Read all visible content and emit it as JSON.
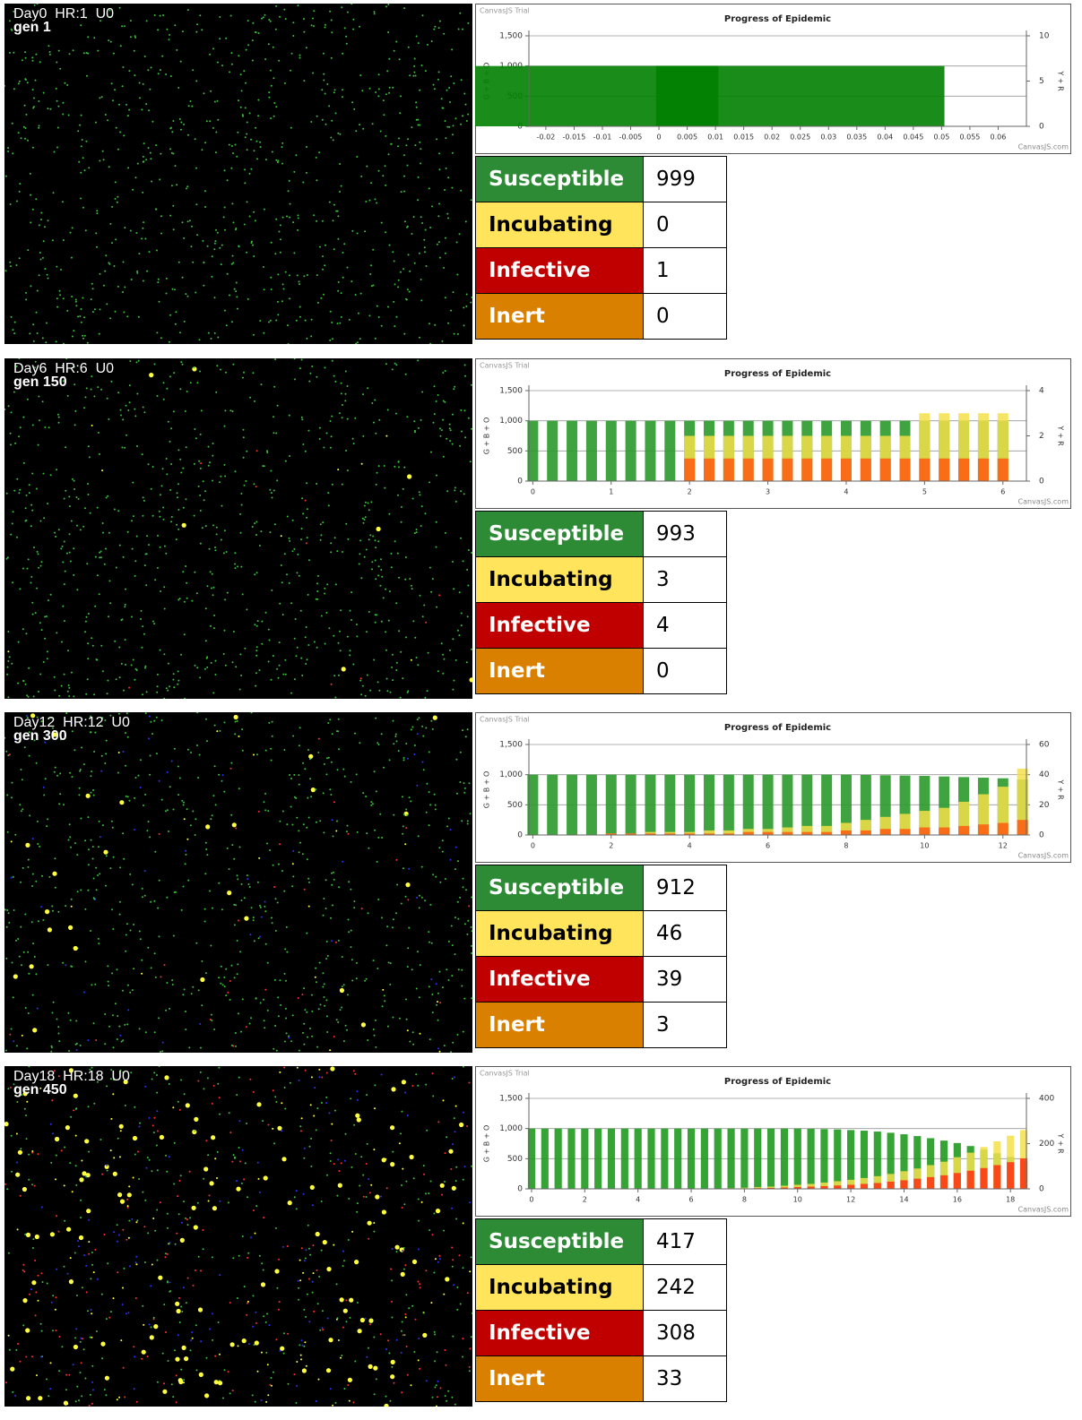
{
  "panels": [
    {
      "status": "Day0  HR:1  U0",
      "gen": "gen 1",
      "table": {
        "rows": [
          [
            "Susceptible",
            999
          ],
          [
            "Incubating",
            0
          ],
          [
            "Infective",
            1
          ],
          [
            "Inert",
            0
          ]
        ]
      }
    },
    {
      "status": "Day6  HR:6  U0",
      "gen": "gen 150",
      "table": {
        "rows": [
          [
            "Susceptible",
            993
          ],
          [
            "Incubating",
            3
          ],
          [
            "Infective",
            4
          ],
          [
            "Inert",
            0
          ]
        ]
      }
    },
    {
      "status": "Day12  HR:12  U0",
      "gen": "gen 300",
      "table": {
        "rows": [
          [
            "Susceptible",
            912
          ],
          [
            "Incubating",
            46
          ],
          [
            "Infective",
            39
          ],
          [
            "Inert",
            3
          ]
        ]
      }
    },
    {
      "status": "Day18  HR:18  U0",
      "gen": "gen 450",
      "table": {
        "rows": [
          [
            "Susceptible",
            417
          ],
          [
            "Incubating",
            242
          ],
          [
            "Infective",
            308
          ],
          [
            "Inert",
            33
          ]
        ]
      }
    }
  ],
  "chart_data": [
    {
      "type": "bar",
      "title": "Progress of Epidemic",
      "watermark": "CanvasJS Trial",
      "credit": "CanvasJS.com",
      "ylabel": "G + B + O",
      "y2label": "Y + R",
      "x": [
        -0.015,
        0.025
      ],
      "xlim": [
        -0.023,
        0.065
      ],
      "xticks": [
        -0.02,
        -0.015,
        -0.01,
        -0.005,
        0,
        0.005,
        0.01,
        0.015,
        0.02,
        0.025,
        0.03,
        0.035,
        0.04,
        0.045,
        0.05,
        0.055,
        0.06
      ],
      "bar_width": 0.006,
      "ylim": [
        0,
        1500
      ],
      "yticks": [
        0,
        500,
        {
          "value": 1000,
          "label": "1,000"
        },
        {
          "value": 1500,
          "label": "1,500"
        }
      ],
      "y2lim": [
        0,
        10
      ],
      "y2ticks": [
        0,
        5,
        10
      ],
      "grid": true,
      "series": [
        {
          "color": "#008000",
          "values": [
            1000,
            1000
          ]
        }
      ]
    },
    {
      "type": "bar",
      "title": "Progress of Epidemic",
      "watermark": "CanvasJS Trial",
      "credit": "CanvasJS.com",
      "ylabel": "G + B + O",
      "y2label": "Y + R",
      "x": [
        0,
        0.25,
        0.5,
        0.75,
        1,
        1.25,
        1.5,
        1.75,
        2,
        2.25,
        2.5,
        2.75,
        3,
        3.25,
        3.5,
        3.75,
        4,
        4.25,
        4.5,
        4.75,
        5,
        5.25,
        5.5,
        5.75,
        6
      ],
      "xlim": [
        -0.05,
        6.3
      ],
      "xticks": [
        0,
        1,
        2,
        3,
        4,
        5,
        6
      ],
      "ylim": [
        0,
        1500
      ],
      "yticks": [
        0,
        500,
        {
          "value": 1000,
          "label": "1,000"
        },
        {
          "value": 1500,
          "label": "1,500"
        }
      ],
      "y2lim": [
        0,
        4
      ],
      "y2ticks": [
        0,
        2,
        4
      ],
      "grid": true,
      "series": [
        {
          "color": "#2a9a2a",
          "values": [
            1000,
            1000,
            1000,
            1000,
            1000,
            1000,
            1000,
            1000,
            1000,
            1000,
            1000,
            1000,
            1000,
            1000,
            1000,
            1000,
            1000,
            1000,
            1000,
            1000,
            1000,
            1000,
            1000,
            1000,
            1000
          ]
        },
        {
          "color": "#f5e04a",
          "axis": "y2",
          "values": [
            0,
            0,
            0,
            0,
            0,
            0,
            0,
            0,
            2,
            2,
            2,
            2,
            2,
            2,
            2,
            2,
            2,
            2,
            2,
            2,
            3,
            3,
            3,
            3,
            3
          ]
        },
        {
          "color": "#ff5a10",
          "axis": "y2",
          "values": [
            0,
            0,
            0,
            0,
            0,
            0,
            0,
            0,
            1,
            1,
            1,
            1,
            1,
            1,
            1,
            1,
            1,
            1,
            1,
            1,
            1,
            1,
            1,
            1,
            1
          ]
        }
      ]
    },
    {
      "type": "bar",
      "title": "Progress of Epidemic",
      "watermark": "CanvasJS Trial",
      "credit": "CanvasJS.com",
      "ylabel": "G + B + O",
      "y2label": "Y + R",
      "x": [
        0,
        0.5,
        1,
        1.5,
        2,
        2.5,
        3,
        3.5,
        4,
        4.5,
        5,
        5.5,
        6,
        6.5,
        7,
        7.5,
        8,
        8.5,
        9,
        9.5,
        10,
        10.5,
        11,
        11.5,
        12,
        12.5
      ],
      "xlim": [
        -0.1,
        12.6
      ],
      "xticks": [
        0,
        2,
        4,
        6,
        8,
        10,
        12
      ],
      "ylim": [
        0,
        1500
      ],
      "yticks": [
        0,
        500,
        {
          "value": 1000,
          "label": "1,000"
        },
        {
          "value": 1500,
          "label": "1,500"
        }
      ],
      "y2lim": [
        0,
        60
      ],
      "y2ticks": [
        0,
        20,
        40,
        60
      ],
      "grid": true,
      "series": [
        {
          "color": "#2a9a2a",
          "values": [
            1000,
            1000,
            1000,
            1000,
            1000,
            1000,
            1000,
            1000,
            1000,
            1000,
            1000,
            1000,
            1000,
            1000,
            1000,
            1000,
            1000,
            995,
            990,
            985,
            980,
            970,
            960,
            950,
            940,
            920
          ]
        },
        {
          "color": "#f5e04a",
          "axis": "y2",
          "values": [
            0,
            0,
            0,
            0,
            1,
            1,
            2,
            2,
            2,
            3,
            3,
            4,
            4,
            5,
            6,
            6,
            8,
            10,
            12,
            14,
            16,
            18,
            22,
            27,
            32,
            44
          ]
        },
        {
          "color": "#ff5a10",
          "axis": "y2",
          "values": [
            0,
            0,
            0,
            0,
            1,
            1,
            1,
            1,
            1,
            1,
            1,
            2,
            2,
            2,
            2,
            2,
            3,
            3,
            4,
            4,
            5,
            5,
            6,
            7,
            8,
            10
          ]
        }
      ]
    },
    {
      "type": "bar",
      "title": "Progress of Epidemic",
      "watermark": "CanvasJS Trial",
      "credit": "CanvasJS.com",
      "ylabel": "G + B + O",
      "y2label": "Y + R",
      "x": [
        0,
        0.5,
        1,
        1.5,
        2,
        2.5,
        3,
        3.5,
        4,
        4.5,
        5,
        5.5,
        6,
        6.5,
        7,
        7.5,
        8,
        8.5,
        9,
        9.5,
        10,
        10.5,
        11,
        11.5,
        12,
        12.5,
        13,
        13.5,
        14,
        14.5,
        15,
        15.5,
        16,
        16.5,
        17,
        17.5,
        18,
        18.5
      ],
      "xlim": [
        -0.1,
        18.6
      ],
      "xticks": [
        0,
        2,
        4,
        6,
        8,
        10,
        12,
        14,
        16,
        18
      ],
      "ylim": [
        0,
        1500
      ],
      "yticks": [
        0,
        500,
        {
          "value": 1000,
          "label": "1,000"
        },
        {
          "value": 1500,
          "label": "1,500"
        }
      ],
      "y2lim": [
        0,
        400
      ],
      "y2ticks": [
        0,
        200,
        400
      ],
      "grid": true,
      "series": [
        {
          "color": "#1f9a1f",
          "values": [
            1000,
            1000,
            1000,
            1000,
            1000,
            1000,
            1000,
            1000,
            1000,
            1000,
            1000,
            1000,
            1000,
            1000,
            1000,
            1000,
            1000,
            1000,
            1000,
            1000,
            1000,
            995,
            990,
            985,
            975,
            965,
            950,
            930,
            905,
            875,
            840,
            800,
            760,
            710,
            650,
            590,
            530,
            460
          ]
        },
        {
          "color": "#f5e04a",
          "axis": "y2",
          "values": [
            0,
            0,
            0,
            0,
            0,
            0,
            0,
            0,
            0,
            0,
            0,
            0,
            0,
            0,
            2,
            3,
            5,
            8,
            10,
            14,
            18,
            22,
            28,
            34,
            40,
            48,
            56,
            66,
            78,
            90,
            105,
            120,
            140,
            160,
            185,
            210,
            235,
            260
          ]
        },
        {
          "color": "#ff3010",
          "axis": "y2",
          "values": [
            0,
            0,
            0,
            0,
            0,
            0,
            0,
            0,
            0,
            0,
            0,
            0,
            0,
            0,
            1,
            1,
            2,
            3,
            4,
            6,
            8,
            10,
            12,
            15,
            18,
            22,
            26,
            32,
            38,
            45,
            52,
            60,
            70,
            80,
            92,
            105,
            118,
            135
          ]
        }
      ]
    }
  ]
}
